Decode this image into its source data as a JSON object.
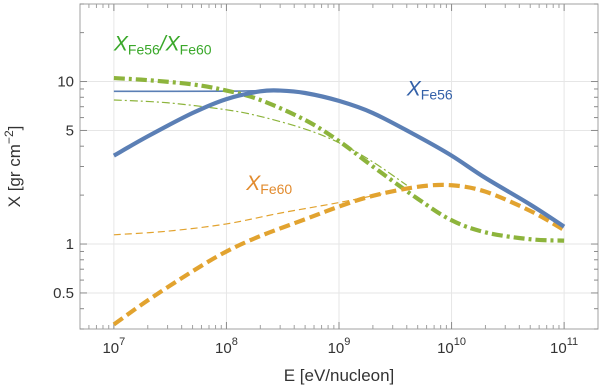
{
  "chart_data": {
    "type": "line",
    "xlabel": "E  [eV/nucleon]",
    "ylabel": "X  [gr cm",
    "ylabel_sup": "−2",
    "ylabel_close": "]",
    "xscale": "log",
    "yscale": "log",
    "xlim": [
      5000000.0,
      200000000000.0
    ],
    "ylim": [
      0.3,
      30
    ],
    "grid": true,
    "x_ticks": [
      {
        "value": 10000000.0,
        "base": "10",
        "exp": "7"
      },
      {
        "value": 100000000.0,
        "base": "10",
        "exp": "8"
      },
      {
        "value": 1000000000.0,
        "base": "10",
        "exp": "9"
      },
      {
        "value": 10000000000.0,
        "base": "10",
        "exp": "10"
      },
      {
        "value": 100000000000.0,
        "base": "10",
        "exp": "11"
      }
    ],
    "y_ticks": [
      {
        "value": 0.5,
        "label": "0.5"
      },
      {
        "value": 1,
        "label": "1"
      },
      {
        "value": 5,
        "label": "5"
      },
      {
        "value": 10,
        "label": "10"
      }
    ],
    "colors": {
      "fe56": "#5b7fb5",
      "fe60": "#e2a32f",
      "ratio": "#8db43c"
    },
    "annotations": [
      {
        "id": "fe56",
        "main": "X",
        "sub": "Fe56",
        "color": "#3461a8",
        "at": [
          4000000000.0,
          8.2
        ]
      },
      {
        "id": "fe60",
        "main": "X",
        "sub": "Fe60",
        "color": "#e28b2e",
        "at": [
          150000000.0,
          2.15
        ]
      },
      {
        "id": "ratio",
        "main": "X",
        "sub": "Fe56",
        "main2": "X",
        "sub2": "Fe60",
        "color": "#3aa82a",
        "at": [
          10000000.0,
          15.5
        ]
      }
    ],
    "series": [
      {
        "id": "fe56-thick",
        "style": "solid-thick",
        "color": "#5b7fb5",
        "x": [
          10000000.0,
          20000000.0,
          50000000.0,
          100000000.0,
          200000000.0,
          300000000.0,
          500000000.0,
          1000000000.0,
          2000000000.0,
          5000000000.0,
          10000000000.0,
          20000000000.0,
          50000000000.0,
          100000000000.0
        ],
        "y": [
          3.5,
          4.6,
          6.4,
          7.8,
          8.7,
          8.8,
          8.5,
          7.6,
          6.4,
          4.6,
          3.5,
          2.55,
          1.75,
          1.28
        ]
      },
      {
        "id": "fe56-thin",
        "style": "solid-thin",
        "color": "#5b7fb5",
        "x": [
          10000000.0,
          100000000.0,
          200000000.0,
          300000000.0
        ],
        "y": [
          8.7,
          8.72,
          8.78,
          8.8
        ]
      },
      {
        "id": "fe60-thick",
        "style": "dashed-thick",
        "color": "#e2a32f",
        "x": [
          10000000.0,
          20000000.0,
          50000000.0,
          100000000.0,
          200000000.0,
          500000000.0,
          1000000000.0,
          2000000000.0,
          5000000000.0,
          10000000000.0,
          20000000000.0,
          50000000000.0,
          100000000000.0
        ],
        "y": [
          0.32,
          0.45,
          0.68,
          0.9,
          1.12,
          1.42,
          1.7,
          1.98,
          2.25,
          2.3,
          2.1,
          1.6,
          1.22
        ]
      },
      {
        "id": "fe60-thin",
        "style": "dashed-thin",
        "color": "#e2a32f",
        "x": [
          10000000.0,
          30000000.0,
          100000000.0,
          300000000.0,
          1000000000.0,
          3000000000.0
        ],
        "y": [
          1.14,
          1.2,
          1.33,
          1.55,
          1.8,
          2.1
        ]
      },
      {
        "id": "ratio-thick",
        "style": "dashdot-thick",
        "color": "#8db43c",
        "x": [
          10000000.0,
          20000000.0,
          50000000.0,
          100000000.0,
          200000000.0,
          500000000.0,
          1000000000.0,
          2000000000.0,
          5000000000.0,
          10000000000.0,
          20000000000.0,
          50000000000.0,
          100000000000.0
        ],
        "y": [
          10.5,
          10.2,
          9.6,
          8.8,
          7.7,
          5.8,
          4.3,
          3.0,
          1.9,
          1.4,
          1.18,
          1.07,
          1.05
        ]
      },
      {
        "id": "ratio-thin",
        "style": "dashdot-thin",
        "color": "#8db43c",
        "x": [
          10000000.0,
          30000000.0,
          100000000.0,
          200000000.0,
          500000000.0,
          1000000000.0,
          2000000000.0,
          4000000000.0
        ],
        "y": [
          7.7,
          7.4,
          6.7,
          6.1,
          5.1,
          4.2,
          3.2,
          2.3
        ]
      }
    ]
  }
}
